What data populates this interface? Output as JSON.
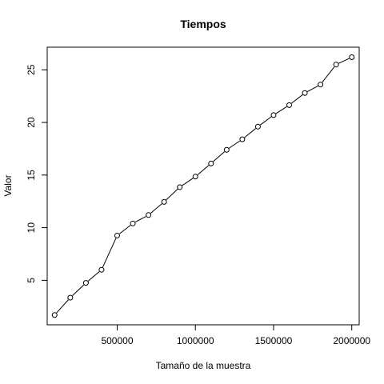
{
  "chart_data": {
    "type": "line",
    "title": "Tiempos",
    "xlabel": "Tamaño de la muestra",
    "ylabel": "Valor",
    "xlim": [
      52500,
      2047500
    ],
    "ylim": [
      0.77,
      27.15
    ],
    "x_ticks": [
      500000,
      1000000,
      1500000,
      2000000
    ],
    "x_tick_labels": [
      "500000",
      "1000000",
      "1500000",
      "2000000"
    ],
    "y_ticks": [
      5,
      10,
      15,
      20,
      25
    ],
    "y_tick_labels": [
      "5",
      "10",
      "15",
      "20",
      "25"
    ],
    "grid": false,
    "legend": "none",
    "series": [
      {
        "x": [
          100000,
          200000,
          300000,
          400000,
          500000,
          600000,
          700000,
          800000,
          900000,
          1000000,
          1100000,
          1200000,
          1300000,
          1400000,
          1500000,
          1600000,
          1700000,
          1800000,
          1900000,
          2000000
        ],
        "y": [
          1.7,
          3.35,
          4.75,
          6.0,
          9.25,
          10.4,
          11.2,
          12.45,
          13.85,
          14.85,
          16.1,
          17.4,
          18.4,
          19.6,
          20.7,
          21.65,
          22.8,
          23.6,
          25.5,
          26.2
        ]
      }
    ],
    "colors": {
      "line": "#000000",
      "axis": "#000000"
    }
  }
}
